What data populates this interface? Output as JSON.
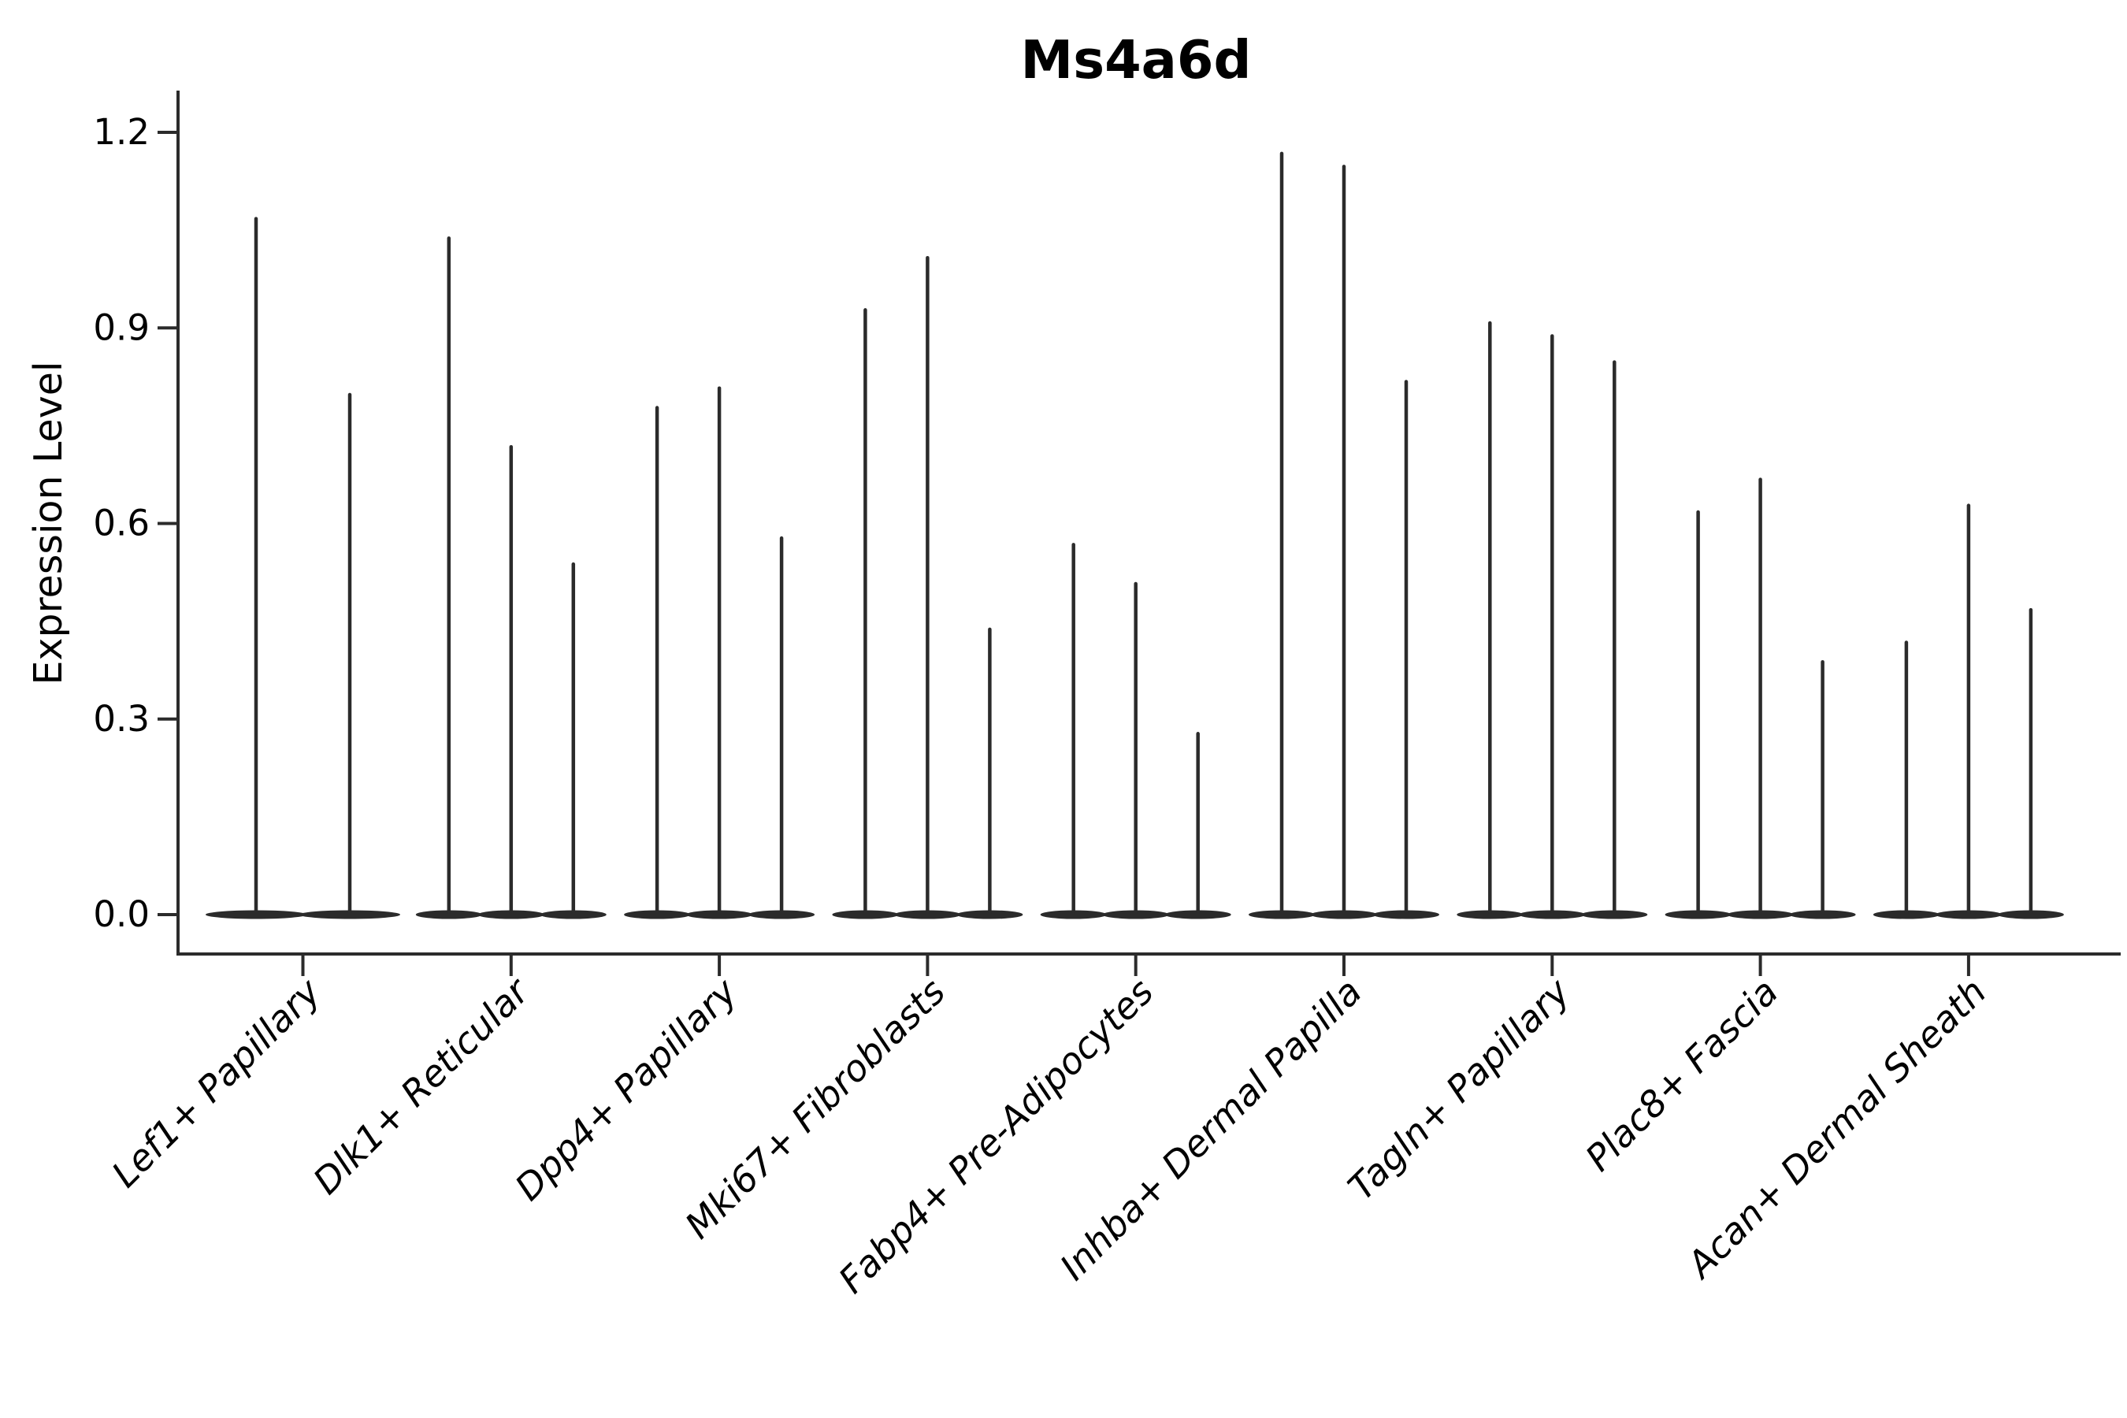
{
  "figure": {
    "title": "Ms4a6d",
    "y_axis_label": "Expression Level",
    "background_color": "#ffffff",
    "line_color": "#2b2b2b",
    "text_color": "#000000"
  },
  "chart_data": {
    "type": "violin",
    "title": "Ms4a6d",
    "xlabel": "",
    "ylabel": "Expression Level",
    "ylim": [
      0,
      1.26
    ],
    "yticks": [
      0.0,
      0.3,
      0.6,
      0.9,
      1.2
    ],
    "ytick_labels": [
      "0.0",
      "0.3",
      "0.6",
      "0.9",
      "1.2"
    ],
    "grid": false,
    "legend": false,
    "categories": [
      "Lef1+ Papillary",
      "Dlk1+ Reticular",
      "Dpp4+ Papillary",
      "Mki67+ Fibroblasts",
      "Fabp4+ Pre-Adipocytes",
      "Inhba+ Dermal Papilla",
      "Tagln+ Papillary",
      "Plac8+ Fascia",
      "Acan+ Dermal Sheath"
    ],
    "groups": [
      {
        "category": "Lef1+ Papillary",
        "violin_max_values": [
          1.07,
          0.8
        ]
      },
      {
        "category": "Dlk1+ Reticular",
        "violin_max_values": [
          1.04,
          0.72,
          0.54
        ]
      },
      {
        "category": "Dpp4+ Papillary",
        "violin_max_values": [
          0.78,
          0.81,
          0.58
        ]
      },
      {
        "category": "Mki67+ Fibroblasts",
        "violin_max_values": [
          0.93,
          1.01,
          0.44
        ]
      },
      {
        "category": "Fabp4+ Pre-Adipocytes",
        "violin_max_values": [
          0.57,
          0.51,
          0.28
        ]
      },
      {
        "category": "Inhba+ Dermal Papilla",
        "violin_max_values": [
          1.17,
          1.15,
          0.82
        ]
      },
      {
        "category": "Tagln+ Papillary",
        "violin_max_values": [
          0.91,
          0.89,
          0.85
        ]
      },
      {
        "category": "Plac8+ Fascia",
        "violin_max_values": [
          0.62,
          0.67,
          0.39
        ]
      },
      {
        "category": "Acan+ Dermal Sheath",
        "violin_max_values": [
          0.42,
          0.63,
          0.47
        ]
      }
    ]
  }
}
